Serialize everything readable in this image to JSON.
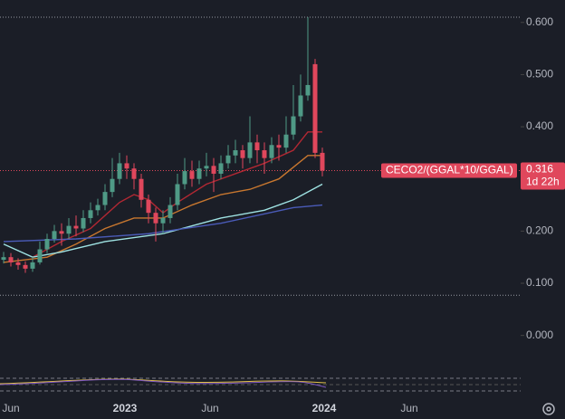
{
  "chart_data": {
    "type": "candlestick",
    "symbol": "CECO2/(GGAL*10/GGAL)",
    "last_label": "0.316",
    "countdown": "1d 22h",
    "up_color": "#4f9a86",
    "down_color": "#e0475c",
    "x": [
      0,
      1,
      2,
      3,
      4,
      5,
      6,
      7,
      8,
      9,
      10,
      11,
      12,
      13,
      14,
      15,
      16,
      17,
      18,
      19,
      20,
      21,
      22,
      23,
      24,
      25,
      26,
      27,
      28,
      29,
      30,
      31,
      32,
      33,
      34,
      35,
      36,
      37,
      38,
      39,
      40,
      41,
      42,
      43,
      44
    ],
    "open": [
      0.145,
      0.15,
      0.14,
      0.135,
      0.128,
      0.14,
      0.165,
      0.185,
      0.2,
      0.195,
      0.21,
      0.205,
      0.225,
      0.24,
      0.25,
      0.275,
      0.3,
      0.33,
      0.32,
      0.3,
      0.26,
      0.235,
      0.215,
      0.225,
      0.25,
      0.29,
      0.315,
      0.3,
      0.32,
      0.325,
      0.31,
      0.33,
      0.345,
      0.355,
      0.34,
      0.37,
      0.355,
      0.34,
      0.365,
      0.36,
      0.385,
      0.42,
      0.46,
      0.52,
      0.35
    ],
    "high": [
      0.16,
      0.158,
      0.148,
      0.142,
      0.15,
      0.18,
      0.195,
      0.212,
      0.215,
      0.225,
      0.23,
      0.24,
      0.255,
      0.262,
      0.29,
      0.34,
      0.35,
      0.345,
      0.33,
      0.31,
      0.27,
      0.245,
      0.24,
      0.265,
      0.31,
      0.34,
      0.335,
      0.335,
      0.35,
      0.34,
      0.345,
      0.365,
      0.375,
      0.365,
      0.42,
      0.385,
      0.37,
      0.38,
      0.385,
      0.42,
      0.48,
      0.5,
      0.61,
      0.53,
      0.36
    ],
    "low": [
      0.138,
      0.132,
      0.126,
      0.12,
      0.122,
      0.136,
      0.158,
      0.178,
      0.172,
      0.185,
      0.19,
      0.198,
      0.215,
      0.23,
      0.24,
      0.265,
      0.29,
      0.3,
      0.28,
      0.245,
      0.215,
      0.18,
      0.195,
      0.215,
      0.24,
      0.28,
      0.285,
      0.29,
      0.305,
      0.275,
      0.3,
      0.32,
      0.33,
      0.32,
      0.33,
      0.33,
      0.31,
      0.33,
      0.335,
      0.35,
      0.375,
      0.41,
      0.45,
      0.34,
      0.305
    ],
    "close": [
      0.15,
      0.14,
      0.135,
      0.128,
      0.14,
      0.165,
      0.185,
      0.2,
      0.195,
      0.21,
      0.205,
      0.225,
      0.24,
      0.25,
      0.275,
      0.3,
      0.33,
      0.32,
      0.3,
      0.26,
      0.235,
      0.215,
      0.225,
      0.25,
      0.29,
      0.315,
      0.3,
      0.32,
      0.325,
      0.31,
      0.33,
      0.345,
      0.355,
      0.34,
      0.37,
      0.355,
      0.34,
      0.365,
      0.36,
      0.385,
      0.42,
      0.46,
      0.48,
      0.35,
      0.316
    ],
    "lines": [
      {
        "color": "#b22833",
        "x": [
          4,
          8,
          12,
          16,
          18,
          20,
          22,
          24,
          28,
          32,
          36,
          40,
          42,
          44
        ],
        "values": [
          0.15,
          0.18,
          0.205,
          0.255,
          0.27,
          0.26,
          0.235,
          0.255,
          0.29,
          0.31,
          0.33,
          0.355,
          0.39,
          0.39
        ]
      },
      {
        "color": "#c8772f",
        "x": [
          0,
          6,
          10,
          14,
          18,
          22,
          26,
          30,
          34,
          38,
          42,
          44
        ],
        "values": [
          0.14,
          0.15,
          0.175,
          0.205,
          0.225,
          0.225,
          0.25,
          0.27,
          0.28,
          0.3,
          0.345,
          0.345
        ]
      },
      {
        "color": "#9fe3e3",
        "x": [
          0,
          4,
          8,
          14,
          22,
          30,
          36,
          40,
          44
        ],
        "values": [
          0.175,
          0.15,
          0.16,
          0.18,
          0.195,
          0.225,
          0.24,
          0.26,
          0.29
        ]
      },
      {
        "color": "#4a5bb8",
        "x": [
          0,
          10,
          20,
          30,
          40,
          44
        ],
        "values": [
          0.18,
          0.185,
          0.195,
          0.215,
          0.245,
          0.25
        ]
      }
    ],
    "hlines": [
      0.61,
      0.077
    ],
    "xlim": [
      -0.5,
      71.375
    ],
    "xticks": [
      {
        "value": 1,
        "label": "Jun"
      },
      {
        "value": 16.75,
        "label": "2023"
      },
      {
        "value": 28.5,
        "label": "Jun"
      },
      {
        "value": 44.25,
        "label": "2024"
      },
      {
        "value": 56,
        "label": "Jun"
      }
    ],
    "ylim": [
      -0.07,
      0.643
    ],
    "yticks": [
      {
        "value": 0,
        "label": "0.000"
      },
      {
        "value": 0.1,
        "label": "0.100"
      },
      {
        "value": 0.2,
        "label": "0.200"
      },
      {
        "value": 0.4,
        "label": "0.400"
      },
      {
        "value": 0.5,
        "label": "0.500"
      },
      {
        "value": 0.6,
        "label": "0.600"
      }
    ]
  }
}
